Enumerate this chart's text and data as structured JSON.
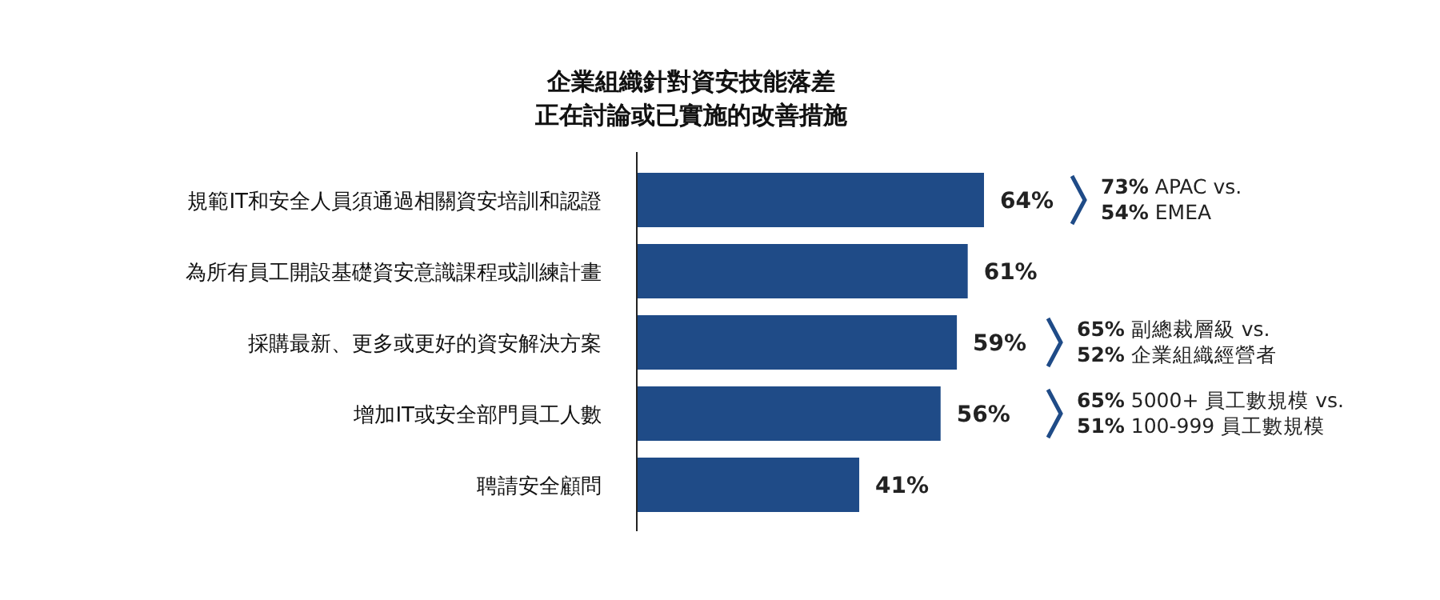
{
  "chart_data": {
    "type": "bar",
    "orientation": "horizontal",
    "title": "企業組織針對資安技能落差正在討論或已實施的改善措施",
    "categories": [
      "規範IT和安全人員須通過相關資安培訓和認證",
      "為所有員工開設基礎資安意識課程或訓練計畫",
      "採購最新、更多或更好的資安解決方案",
      "增加IT或安全部門員工人數",
      "聘請安全顧問"
    ],
    "values": [
      64,
      61,
      59,
      56,
      41
    ],
    "value_labels": [
      "64%",
      "61%",
      "59%",
      "56%",
      "41%"
    ],
    "color": "#1f4b87",
    "annotations": [
      "**73%** APAC vs.",
      "**54%** EMEA",
      "**65%**  副總裁層級 vs.",
      "**52%**  企業組織經營者",
      "**65%**  5000+ 員工數規模 vs.",
      "**51%**  100-999 員工數規模"
    ]
  }
}
